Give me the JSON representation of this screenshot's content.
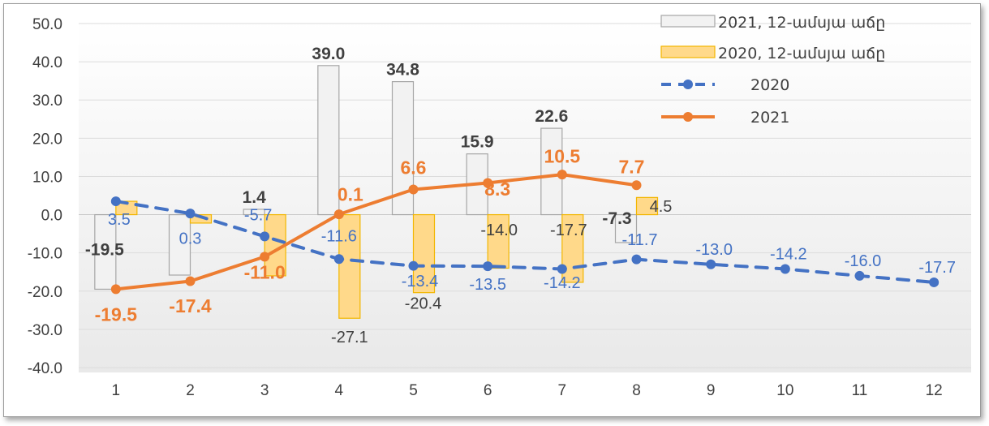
{
  "chart_data": {
    "type": "bar",
    "categories": [
      "1",
      "2",
      "3",
      "4",
      "5",
      "6",
      "7",
      "8",
      "9",
      "10",
      "11",
      "12"
    ],
    "ylim": [
      -40,
      50
    ],
    "yticks": [
      "50.0",
      "40.0",
      "30.0",
      "20.0",
      "10.0",
      "0.0",
      "-10.0",
      "-20.0",
      "-30.0",
      "-40.0"
    ],
    "grid": true,
    "legend_placement": "top-right",
    "series": [
      {
        "name": "2021, 12-ամսյա աճը",
        "type": "bar",
        "values": [
          -19.5,
          -15.8,
          1.4,
          39.0,
          34.8,
          15.9,
          22.6,
          -7.3,
          null,
          null,
          null,
          null
        ],
        "labels": [
          "-19.5",
          "",
          "1.4",
          "39.0",
          "34.8",
          "15.9",
          "22.6",
          "-7.3",
          "",
          "",
          "",
          ""
        ],
        "color": "#f2f2f2",
        "stroke": "#a6a6a6"
      },
      {
        "name": "2020, 12-ամսյա աճը",
        "type": "bar",
        "values": [
          3.5,
          -2.2,
          -16.0,
          -27.1,
          -20.4,
          -14.0,
          -17.7,
          4.5,
          null,
          null,
          null,
          null
        ],
        "labels": [
          "",
          "",
          "",
          "-27.1",
          "-20.4",
          "-14.0",
          "-17.7",
          "4.5",
          "",
          "",
          "",
          ""
        ],
        "color": "#ffd98a",
        "stroke": "#f2b600"
      },
      {
        "name": "2020",
        "type": "line",
        "dashed": true,
        "values": [
          3.5,
          0.3,
          -5.7,
          -11.6,
          -13.4,
          -13.5,
          -14.2,
          -11.7,
          -13.0,
          -14.2,
          -16.0,
          -17.7
        ],
        "labels": [
          "3.5",
          "0.3",
          "-5.7",
          "-11.6",
          "-13.4",
          "-13.5",
          "-14.2",
          "-11.7",
          "-13.0",
          "-14.2",
          "-16.0",
          "-17.7"
        ],
        "color": "#4472c4"
      },
      {
        "name": "2021",
        "type": "line",
        "values": [
          -19.5,
          -17.4,
          -11.0,
          0.1,
          6.6,
          8.3,
          10.5,
          7.7,
          null,
          null,
          null,
          null
        ],
        "labels": [
          "-19.5",
          "-17.4",
          "-11.0",
          "0.1",
          "6.6",
          "8.3",
          "10.5",
          "7.7",
          "",
          "",
          "",
          ""
        ],
        "color": "#ed7d31"
      }
    ]
  }
}
